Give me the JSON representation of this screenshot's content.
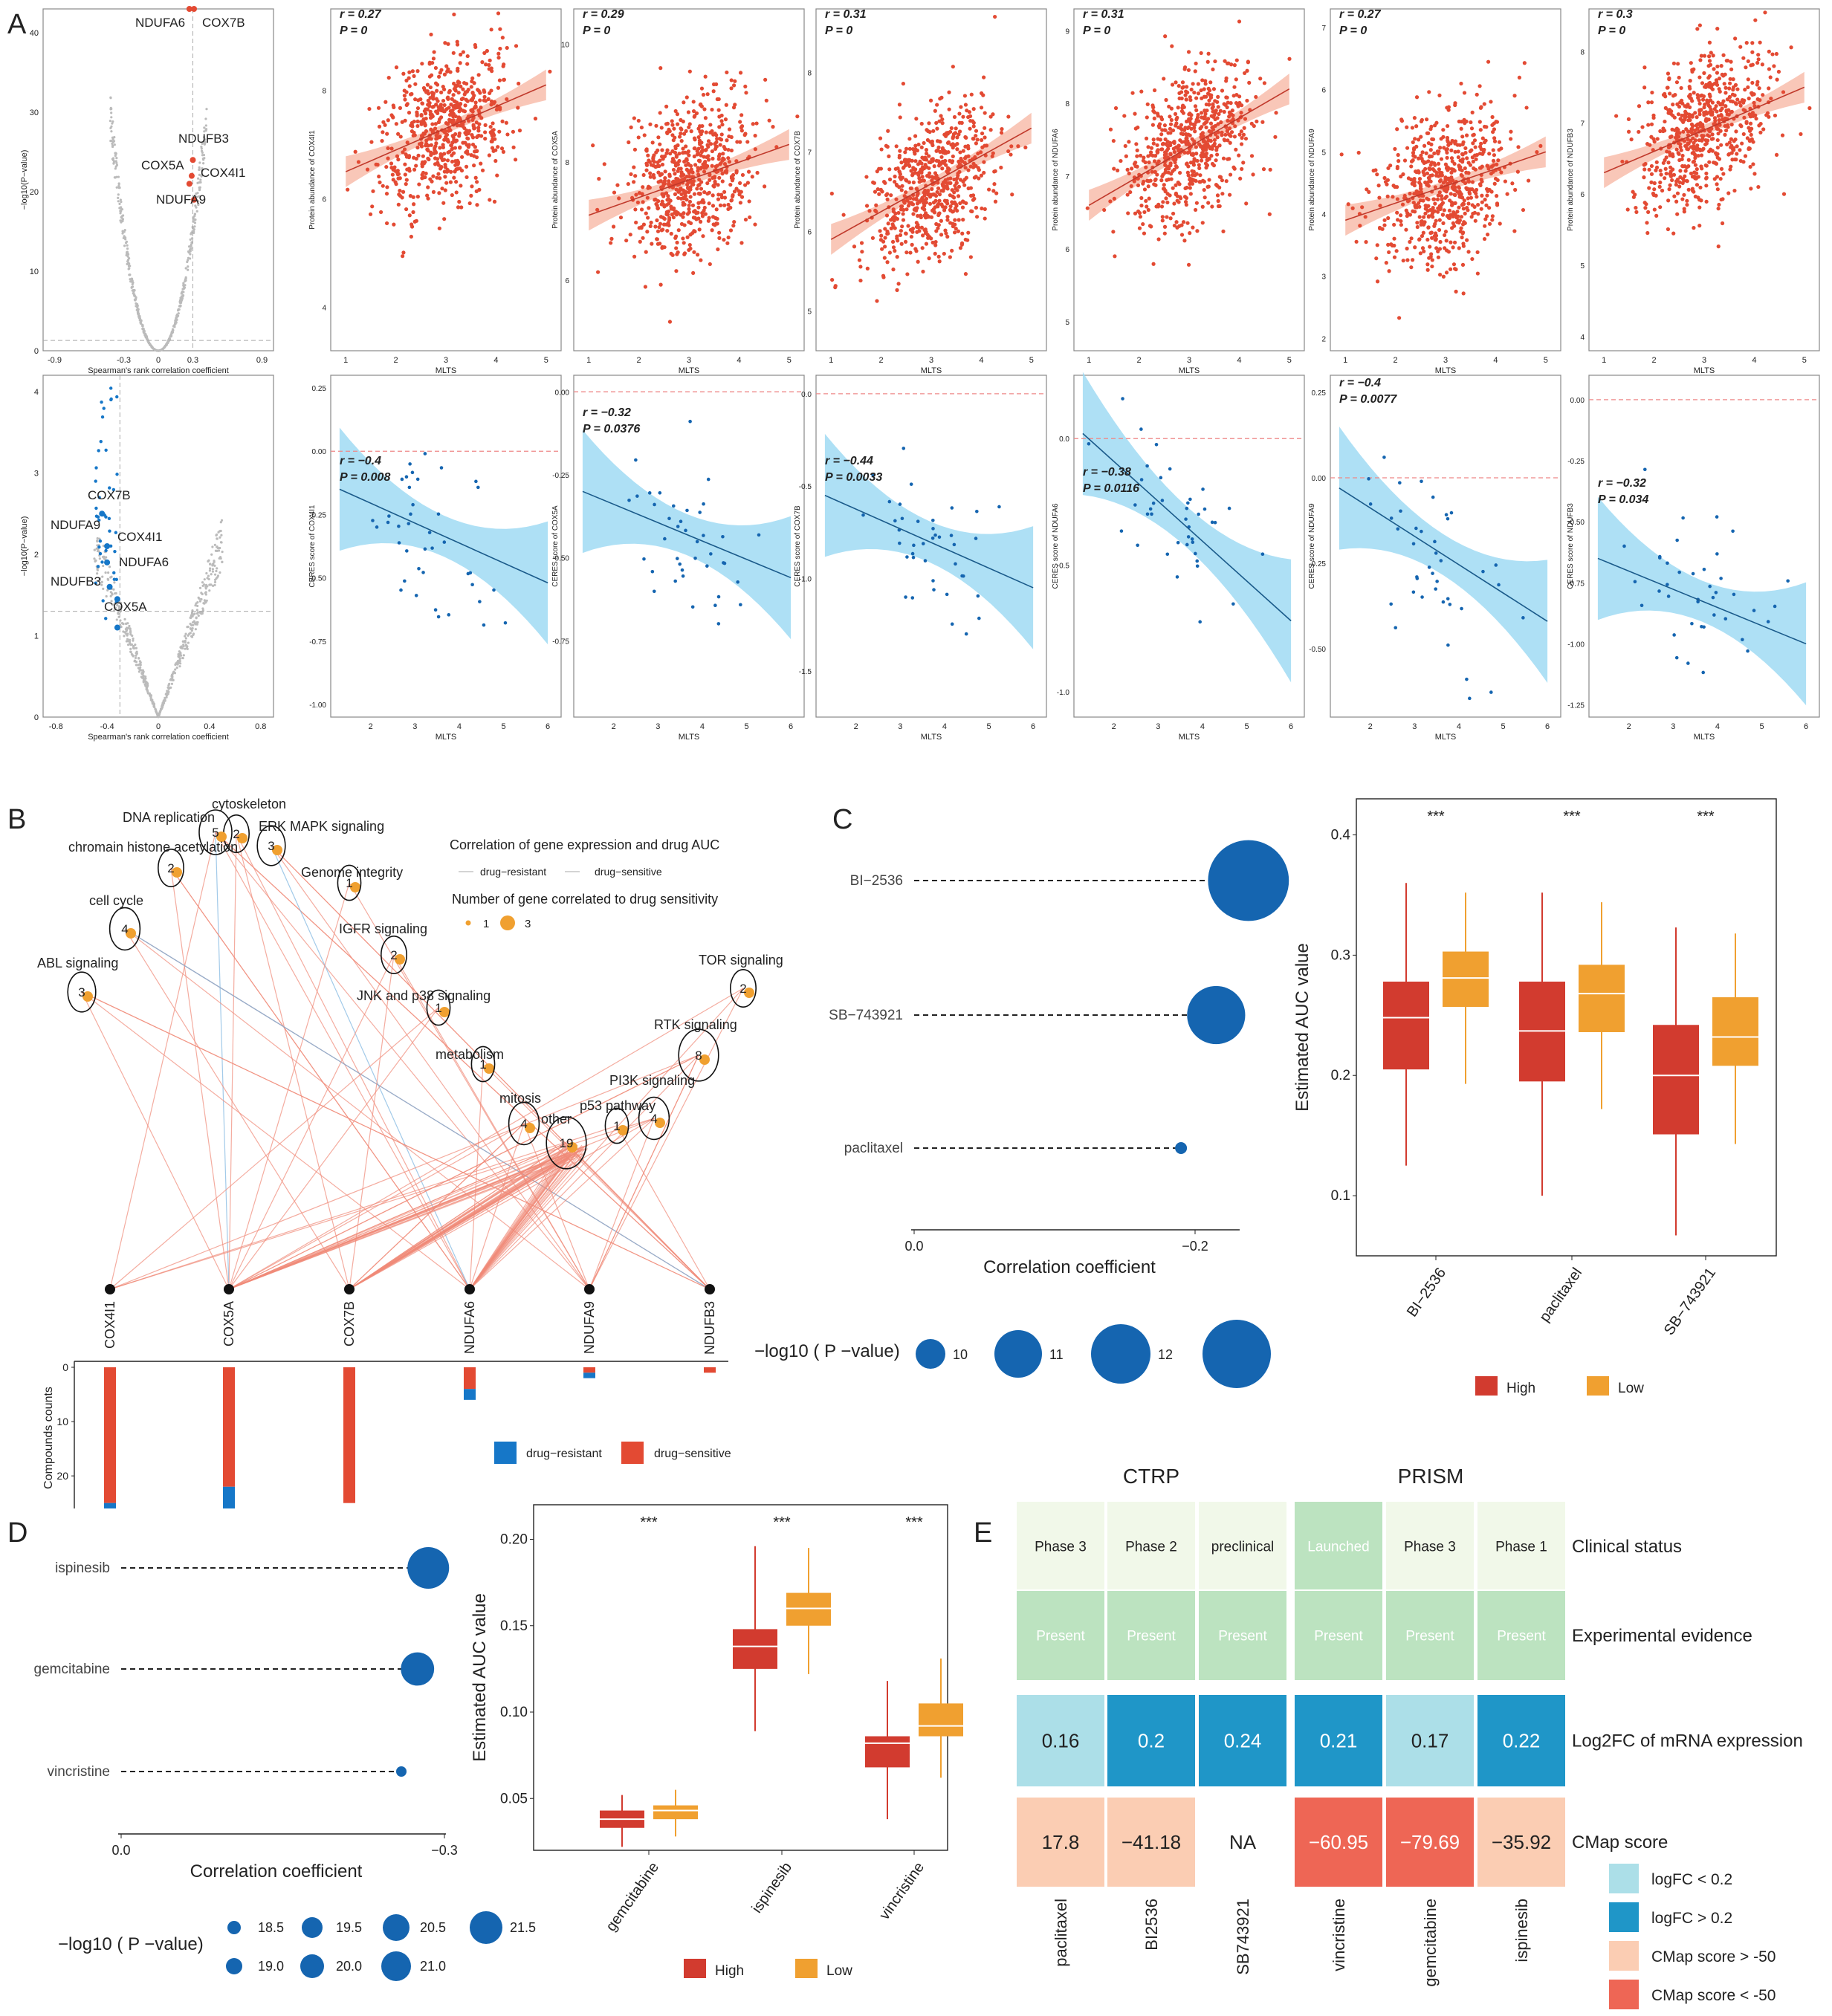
{
  "panel_letters": [
    "A",
    "B",
    "C",
    "D",
    "E"
  ],
  "colors": {
    "red": "#e34a33",
    "blue": "#1677c8",
    "band_red": "#f7b9a6",
    "band_blue": "#9ad8f2",
    "orange": "#f0a030",
    "high": "#d23b2f",
    "low": "#f0a030",
    "dot_blue": "#1565b0",
    "heat_light": "#acdfe8",
    "heat_dark": "#1f96c8",
    "cmap_light": "#fbcdb3",
    "cmap_dark": "#ee6655",
    "green": "#bce3c0",
    "pale": "#f1f8e9"
  },
  "chart_data": [
    {
      "id": "A-volcano-proteomics",
      "type": "scatter",
      "xlabel": "Spearman's rank correlation coefficient",
      "ylabel": "−log10(P−value)",
      "xticks": [
        "-0.9",
        "-0.3",
        "0",
        "0.3",
        "0.9"
      ],
      "yticks": [
        "0",
        "10",
        "20",
        "30",
        "40"
      ],
      "xlim": [
        -1,
        1
      ],
      "ylim": [
        0,
        43
      ],
      "labels": [
        {
          "gene": "NDUFA6",
          "x": 0.27,
          "y": 43
        },
        {
          "gene": "COX7B",
          "x": 0.31,
          "y": 43
        },
        {
          "gene": "NDUFB3",
          "x": 0.3,
          "y": 24
        },
        {
          "gene": "COX5A",
          "x": 0.29,
          "y": 22
        },
        {
          "gene": "COX4I1",
          "x": 0.27,
          "y": 21
        },
        {
          "gene": "NDUFA9",
          "x": 0.31,
          "y": 19
        }
      ]
    },
    {
      "id": "A-volcano-ceres",
      "type": "scatter",
      "xlabel": "Spearman's rank correlation coefficient",
      "ylabel": "−log10(P−value)",
      "xticks": [
        "-0.8",
        "-0.4",
        "0",
        "0.4",
        "0.8"
      ],
      "yticks": [
        "0",
        "1",
        "2",
        "3",
        "4"
      ],
      "xlim": [
        -0.9,
        0.9
      ],
      "ylim": [
        0,
        4.2
      ],
      "labels": [
        {
          "gene": "COX7B",
          "x": -0.44,
          "y": 2.5
        },
        {
          "gene": "NDUFA9",
          "x": -0.4,
          "y": 2.1
        },
        {
          "gene": "COX4I1",
          "x": -0.4,
          "y": 1.9
        },
        {
          "gene": "NDUFA6",
          "x": -0.38,
          "y": 1.6
        },
        {
          "gene": "NDUFB3",
          "x": -0.32,
          "y": 1.45
        },
        {
          "gene": "COX5A",
          "x": -0.32,
          "y": 1.1
        }
      ]
    },
    {
      "id": "A-protein-scatter",
      "type": "scatter",
      "xlabel": "MLTS",
      "series": [
        {
          "gene": "COX4I1",
          "ylabel": "Protein abundance of COX4I1",
          "r": "r = 0.27",
          "p": "P = 0",
          "yticks": [
            "4",
            "6",
            "8"
          ],
          "ylim": [
            3.2,
            9.5
          ],
          "fit": [
            6.5,
            8.1
          ]
        },
        {
          "gene": "COX5A",
          "ylabel": "Protein abundance of COX5A",
          "r": "r = 0.29",
          "p": "P = 0",
          "yticks": [
            "6",
            "8",
            "10"
          ],
          "ylim": [
            4.8,
            10.6
          ],
          "fit": [
            7.1,
            8.3
          ]
        },
        {
          "gene": "COX7B",
          "ylabel": "Protein abundance of COX7B",
          "r": "r = 0.31",
          "p": "P = 0",
          "yticks": [
            "5",
            "6",
            "7",
            "8"
          ],
          "ylim": [
            4.5,
            8.8
          ],
          "fit": [
            5.9,
            7.3
          ]
        },
        {
          "gene": "NDUFA6",
          "ylabel": "Protein abundance of NDUFA6",
          "r": "r = 0.31",
          "p": "P = 0",
          "yticks": [
            "5",
            "6",
            "7",
            "8",
            "9"
          ],
          "ylim": [
            4.6,
            9.3
          ],
          "fit": [
            6.6,
            8.2
          ]
        },
        {
          "gene": "NDUFA9",
          "ylabel": "Protein abundance of NDUFA9",
          "r": "r = 0.27",
          "p": "P = 0",
          "yticks": [
            "2",
            "3",
            "4",
            "5",
            "6",
            "7"
          ],
          "ylim": [
            1.8,
            7.3
          ],
          "fit": [
            3.9,
            5.0
          ]
        },
        {
          "gene": "NDUFB3",
          "ylabel": "Protein abundance of NDUFB3",
          "r": "r = 0.3",
          "p": "P = 0",
          "yticks": [
            "4",
            "5",
            "6",
            "7",
            "8"
          ],
          "ylim": [
            3.8,
            8.6
          ],
          "fit": [
            6.3,
            7.5
          ]
        }
      ],
      "xticks": [
        "1",
        "2",
        "3",
        "4",
        "5"
      ],
      "xlim": [
        0.7,
        5.3
      ]
    },
    {
      "id": "A-ceres-scatter",
      "type": "scatter",
      "xlabel": "MLTS",
      "series": [
        {
          "gene": "COX4I1",
          "ylabel": "CERES score of COX4I1",
          "r": "r = −0.4",
          "p": "P = 0.008",
          "yticks": [
            "-1.00",
            "-0.75",
            "-0.50",
            "-0.25",
            "0.00",
            "0.25"
          ],
          "yvals": [
            -1.0,
            -0.75,
            -0.5,
            -0.25,
            0.0,
            0.25
          ],
          "ylim": [
            -1.05,
            0.3
          ],
          "fit": [
            -0.15,
            -0.52
          ]
        },
        {
          "gene": "COX5A",
          "ylabel": "CERES score of COX5A",
          "r": "r = −0.32",
          "p": "P = 0.0376",
          "yticks": [
            "-0.75",
            "-0.50",
            "-0.25",
            "0.00"
          ],
          "yvals": [
            -0.75,
            -0.5,
            -0.25,
            0.0
          ],
          "ylim": [
            -0.98,
            0.05
          ],
          "fit": [
            -0.3,
            -0.56
          ]
        },
        {
          "gene": "COX7B",
          "ylabel": "CERES score of COX7B",
          "r": "r = −0.44",
          "p": "P = 0.0033",
          "yticks": [
            "-1.5",
            "-1.0",
            "-0.5",
            "0.0"
          ],
          "yvals": [
            -1.5,
            -1.0,
            -0.5,
            0.0
          ],
          "ylim": [
            -1.75,
            0.1
          ],
          "fit": [
            -0.55,
            -1.05
          ]
        },
        {
          "gene": "NDUFA6",
          "ylabel": "CERES score of NDUFA6",
          "r": "r = −0.38",
          "p": "P = 0.0116",
          "yticks": [
            "-1.0",
            "-0.5",
            "0.0"
          ],
          "yvals": [
            -1.0,
            -0.5,
            0.0
          ],
          "ylim": [
            -1.1,
            0.25
          ],
          "fit": [
            0.02,
            -0.72
          ]
        },
        {
          "gene": "NDUFA9",
          "ylabel": "CERES score of NDUFA9",
          "r": "r = −0.4",
          "p": "P = 0.0077",
          "yticks": [
            "-0.50",
            "-0.25",
            "0.00",
            "0.25"
          ],
          "yvals": [
            -0.5,
            -0.25,
            0.0,
            0.25
          ],
          "ylim": [
            -0.7,
            0.3
          ],
          "fit": [
            -0.03,
            -0.42
          ]
        },
        {
          "gene": "NDUFB3",
          "ylabel": "CERES score of NDUFB3",
          "r": "r = −0.32",
          "p": "P = 0.034",
          "yticks": [
            "-1.25",
            "-1.00",
            "-0.75",
            "-0.50",
            "-0.25",
            "0.00"
          ],
          "yvals": [
            -1.25,
            -1.0,
            -0.75,
            -0.5,
            -0.25,
            0.0
          ],
          "ylim": [
            -1.3,
            0.1
          ],
          "fit": [
            -0.65,
            -1.0
          ]
        }
      ],
      "xticks": [
        "2",
        "3",
        "4",
        "5",
        "6"
      ],
      "xlim": [
        1.1,
        6.3
      ]
    },
    {
      "id": "B-network",
      "type": "network",
      "legend_title1": "Correlation of gene expression and drug AUC",
      "legend_items1": [
        "drug−resistant",
        "drug−sensitive"
      ],
      "legend_title2": "Number of gene correlated to drug sensitivity",
      "legend_sizes": [
        "1",
        "3"
      ],
      "pathways": [
        {
          "name": "DNA replication",
          "count": "5"
        },
        {
          "name": "cytoskeleton",
          "count": "2"
        },
        {
          "name": "ERK MAPK signaling",
          "count": "3"
        },
        {
          "name": "chromain histone acetylation",
          "count": "2"
        },
        {
          "name": "Genome integrity",
          "count": "1"
        },
        {
          "name": "cell cycle",
          "count": "4"
        },
        {
          "name": "IGFR signaling",
          "count": "2"
        },
        {
          "name": "ABL signaling",
          "count": "3"
        },
        {
          "name": "JNK and p38 signaling",
          "count": "1"
        },
        {
          "name": "TOR signaling",
          "count": "2"
        },
        {
          "name": "RTK signaling",
          "count": "8"
        },
        {
          "name": "metabolism",
          "count": "1"
        },
        {
          "name": "PI3K signaling",
          "count": "4"
        },
        {
          "name": "mitosis",
          "count": "4"
        },
        {
          "name": "p53 pathway",
          "count": "1"
        },
        {
          "name": "other",
          "count": "19"
        }
      ],
      "genes": [
        "COX4I1",
        "COX5A",
        "COX7B",
        "NDUFA6",
        "NDUFA9",
        "NDUFB3"
      ],
      "bars": {
        "ylabel": "Compounds counts",
        "yticks": [
          "0",
          "10",
          "20"
        ],
        "sensitive": [
          25,
          22,
          25,
          4,
          1,
          1
        ],
        "resistant": [
          1,
          4,
          0,
          2,
          1,
          0
        ],
        "legend": [
          "drug−resistant",
          "drug−sensitive"
        ]
      }
    },
    {
      "id": "C-lollipop",
      "type": "scatter",
      "drugs": [
        "BI−2536",
        "SB−743921",
        "paclitaxel"
      ],
      "corr": [
        -0.238,
        -0.215,
        -0.19
      ],
      "size_values": [
        12.2,
        11.3,
        9.3
      ],
      "xlabel": "Correlation coefficient",
      "xticks": [
        "0.0",
        "−0.2"
      ],
      "size_legend_label": "−log10 ( P −value)",
      "size_legend": [
        "10",
        "11",
        "12"
      ]
    },
    {
      "id": "C-boxplot",
      "type": "bar",
      "ylabel": "Estimated AUC value",
      "categories": [
        "BI−2536",
        "paclitaxel",
        "SB−743921"
      ],
      "yticks": [
        "0.1",
        "0.2",
        "0.3",
        "0.4"
      ],
      "ylim": [
        0.05,
        0.43
      ],
      "sig": [
        "***",
        "***",
        "***"
      ],
      "legend": [
        "High",
        "Low"
      ],
      "series": [
        {
          "name": "High",
          "boxes": [
            [
              0.125,
              0.205,
              0.248,
              0.278,
              0.36
            ],
            [
              0.1,
              0.195,
              0.237,
              0.278,
              0.352
            ],
            [
              0.067,
              0.151,
              0.2,
              0.242,
              0.323
            ]
          ]
        },
        {
          "name": "Low",
          "boxes": [
            [
              0.193,
              0.257,
              0.281,
              0.303,
              0.352
            ],
            [
              0.172,
              0.236,
              0.268,
              0.292,
              0.344
            ],
            [
              0.143,
              0.208,
              0.232,
              0.265,
              0.318
            ]
          ]
        }
      ]
    },
    {
      "id": "D-lollipop",
      "type": "scatter",
      "drugs": [
        "ispinesib",
        "gemcitabine",
        "vincristine"
      ],
      "corr": [
        -0.285,
        -0.275,
        -0.26
      ],
      "size_values": [
        21.5,
        20.8,
        18.8
      ],
      "xlabel": "Correlation coefficient",
      "xticks": [
        "0.0",
        "−0.3"
      ],
      "size_legend_label": "−log10 ( P −value)",
      "size_legend": [
        "18.5",
        "19.5",
        "20.5",
        "21.5",
        "19.0",
        "20.0",
        "21.0"
      ]
    },
    {
      "id": "D-boxplot",
      "type": "bar",
      "ylabel": "Estimated AUC value",
      "categories": [
        "gemcitabine",
        "ispinesib",
        "vincristine"
      ],
      "yticks": [
        "0.05",
        "0.10",
        "0.15",
        "0.20"
      ],
      "ylim": [
        0.02,
        0.22
      ],
      "sig": [
        "***",
        "***",
        "***"
      ],
      "legend": [
        "High",
        "Low"
      ],
      "series": [
        {
          "name": "High",
          "boxes": [
            [
              0.022,
              0.033,
              0.038,
              0.043,
              0.052
            ],
            [
              0.089,
              0.125,
              0.138,
              0.148,
              0.196
            ],
            [
              0.038,
              0.068,
              0.082,
              0.086,
              0.118
            ]
          ]
        },
        {
          "name": "Low",
          "boxes": [
            [
              0.028,
              0.038,
              0.043,
              0.046,
              0.055
            ],
            [
              0.122,
              0.15,
              0.16,
              0.169,
              0.195
            ],
            [
              0.062,
              0.086,
              0.092,
              0.105,
              0.131
            ]
          ]
        }
      ]
    },
    {
      "id": "E-heatmap",
      "type": "heatmap",
      "groups": [
        "CTRP",
        "PRISM"
      ],
      "columns": [
        "paclitaxel",
        "BI2536",
        "SB743921",
        "vincristine",
        "gemcitabine",
        "ispinesib"
      ],
      "rows": [
        "Clinical status",
        "Experimental evidence",
        "Log2FC of mRNA expression",
        "CMap score"
      ],
      "clinical": [
        "Phase 3",
        "Phase 2",
        "preclinical",
        "Launched",
        "Phase 3",
        "Phase 1"
      ],
      "evidence": [
        "Present",
        "Present",
        "Present",
        "Present",
        "Present",
        "Present"
      ],
      "log2fc": [
        "0.16",
        "0.2",
        "0.24",
        "0.21",
        "0.17",
        "0.22"
      ],
      "cmap": [
        "17.8",
        "−41.18",
        "NA",
        "−60.95",
        "−79.69",
        "−35.92"
      ],
      "legend": [
        "logFC < 0.2",
        "logFC > 0.2",
        "CMap score > -50",
        "CMap score < -50"
      ]
    }
  ]
}
